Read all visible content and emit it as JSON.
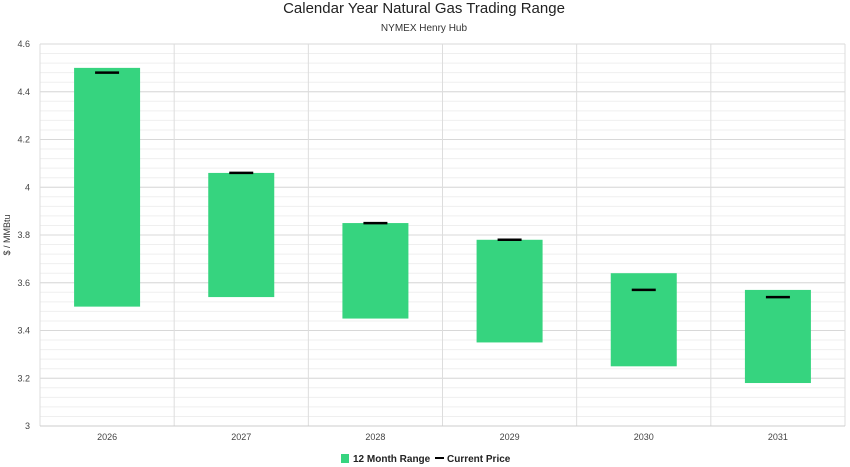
{
  "chart_data": {
    "type": "bar",
    "title": "Calendar Year Natural Gas Trading Range",
    "subtitle": "NYMEX Henry Hub",
    "xlabel": "",
    "ylabel": "$ / MMBtu",
    "ylim": [
      3,
      4.6
    ],
    "yticks": [
      "3",
      "3.2",
      "3.4",
      "3.6",
      "3.8",
      "4",
      "4.2",
      "4.4",
      "4.6"
    ],
    "categories": [
      "2026",
      "2027",
      "2028",
      "2029",
      "2030",
      "2031"
    ],
    "grid": true,
    "legend_position": "bottom",
    "series": [
      {
        "name": "12 Month Range",
        "kind": "floating-bar",
        "color": "#36d47f",
        "low": [
          3.5,
          3.54,
          3.45,
          3.35,
          3.25,
          3.18
        ],
        "high": [
          4.5,
          4.06,
          3.85,
          3.78,
          3.64,
          3.57
        ]
      },
      {
        "name": "Current Price",
        "kind": "marker-line",
        "color": "#000000",
        "values": [
          4.48,
          4.06,
          3.85,
          3.78,
          3.57,
          3.54
        ]
      }
    ]
  }
}
